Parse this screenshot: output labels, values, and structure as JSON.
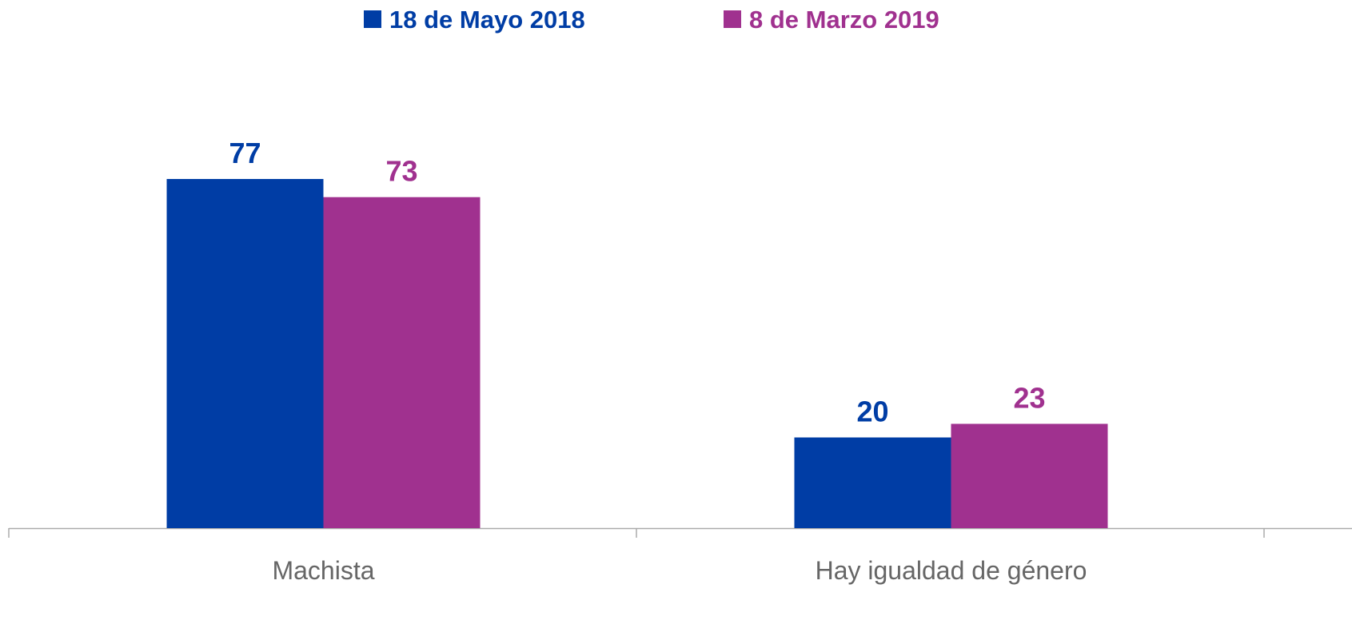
{
  "chart_data": {
    "type": "bar",
    "categories": [
      "Machista",
      "Hay igualdad de género"
    ],
    "series": [
      {
        "name": "18 de Mayo 2018",
        "color": "#003da5",
        "values": [
          77,
          20
        ]
      },
      {
        "name": "8 de Marzo 2019",
        "color": "#a0318f",
        "values": [
          73,
          23
        ]
      }
    ],
    "legend": "top"
  }
}
